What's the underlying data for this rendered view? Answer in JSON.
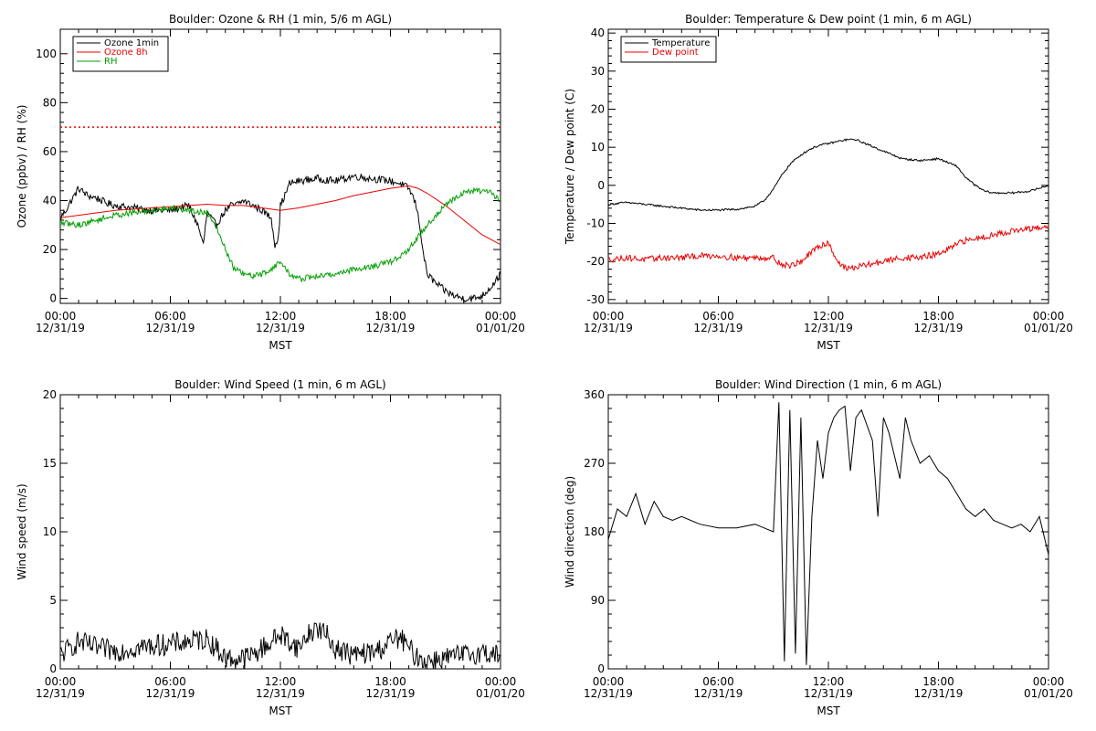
{
  "figure": {
    "background": "#ffffff",
    "colors": {
      "black": "#000000",
      "red": "#ee0000",
      "green": "#00a000"
    }
  },
  "chart_data": [
    {
      "id": "ozone_rh",
      "type": "line",
      "title": "Boulder: Ozone & RH (1 min, 5/6 m AGL)",
      "ylabel": "Ozone (ppbv) / RH (%)",
      "xlabel": "MST",
      "xlim": [
        0,
        24
      ],
      "ylim": [
        -2,
        110
      ],
      "xticks": [
        0,
        6,
        12,
        18,
        24
      ],
      "xtick_labels": [
        [
          "00:00",
          "12/31/19"
        ],
        [
          "06:00",
          "12/31/19"
        ],
        [
          "12:00",
          "12/31/19"
        ],
        [
          "18:00",
          "12/31/19"
        ],
        [
          "00:00",
          "01/01/20"
        ]
      ],
      "yticks": [
        0,
        20,
        40,
        60,
        80,
        100
      ],
      "ytick_labels": [
        "0",
        "20",
        "40",
        "60",
        "80",
        "100"
      ],
      "legend": {
        "position": "top-left",
        "entries": [
          "Ozone 1min",
          "Ozone 8h",
          "RH"
        ]
      },
      "hline": {
        "y": 70,
        "style": "dotted",
        "color": "#ee0000"
      },
      "series": [
        {
          "name": "Ozone 1min",
          "color": "#000000",
          "noise": 1.5,
          "x": [
            0,
            0.3,
            0.6,
            1.0,
            1.5,
            2.0,
            2.5,
            3.0,
            4.0,
            5.0,
            6.0,
            7.0,
            7.5,
            7.8,
            8.0,
            8.5,
            9.0,
            9.3,
            9.5,
            10.0,
            10.5,
            11.0,
            11.5,
            11.7,
            11.9,
            12.0,
            12.3,
            12.5,
            13.0,
            14.0,
            15.0,
            16.0,
            17.0,
            18.0,
            18.5,
            19.0,
            19.2,
            19.4,
            19.6,
            19.8,
            20.0,
            20.5,
            21.0,
            21.5,
            22.0,
            22.5,
            23.0,
            23.5,
            24.0
          ],
          "y": [
            33,
            36,
            40,
            45,
            42,
            41,
            39,
            38,
            37,
            36,
            36,
            38,
            30,
            22,
            35,
            30,
            36,
            38,
            38,
            40,
            38,
            36,
            33,
            22,
            25,
            38,
            43,
            47,
            48,
            49,
            48,
            50,
            49,
            48,
            47,
            45,
            42,
            38,
            30,
            18,
            10,
            6,
            3,
            1,
            0,
            0,
            1,
            5,
            10
          ]
        },
        {
          "name": "Ozone 8h",
          "color": "#ee0000",
          "noise": 0,
          "x": [
            0,
            1,
            2,
            3,
            4,
            5,
            6,
            7,
            8,
            9,
            10,
            11,
            12,
            13,
            14,
            15,
            16,
            17,
            18,
            19,
            19.5,
            20,
            21,
            22,
            23,
            24
          ],
          "y": [
            33,
            34,
            35,
            36,
            36.5,
            37,
            37.5,
            38,
            38.5,
            38,
            38,
            37,
            36,
            37,
            38.5,
            40,
            42,
            43.5,
            45,
            46,
            45,
            43,
            38,
            32,
            26,
            22
          ]
        },
        {
          "name": "RH",
          "color": "#00a000",
          "noise": 1.2,
          "x": [
            0,
            1,
            2,
            3,
            4,
            5,
            6,
            7,
            8,
            8.5,
            9,
            9.5,
            10,
            10.5,
            11,
            11.5,
            12,
            12.5,
            13,
            14,
            15,
            16,
            17,
            18,
            18.5,
            19,
            19.5,
            20,
            20.5,
            21,
            21.5,
            22,
            22.5,
            23,
            23.5,
            24
          ],
          "y": [
            31,
            30,
            32,
            34,
            35,
            36,
            37,
            36,
            35,
            30,
            20,
            12,
            10,
            9,
            10,
            12,
            15,
            10,
            8,
            9,
            10,
            12,
            13,
            15,
            17,
            20,
            25,
            30,
            34,
            38,
            41,
            43,
            44,
            44,
            43,
            40
          ]
        }
      ]
    },
    {
      "id": "temp_dew",
      "type": "line",
      "title": "Boulder: Temperature & Dew point (1 min, 6 m AGL)",
      "ylabel": "Temperature / Dew point (C)",
      "xlabel": "MST",
      "xlim": [
        0,
        24
      ],
      "ylim": [
        -31,
        41
      ],
      "xticks": [
        0,
        6,
        12,
        18,
        24
      ],
      "xtick_labels": [
        [
          "00:00",
          "12/31/19"
        ],
        [
          "06:00",
          "12/31/19"
        ],
        [
          "12:00",
          "12/31/19"
        ],
        [
          "18:00",
          "12/31/19"
        ],
        [
          "00:00",
          "01/01/20"
        ]
      ],
      "yticks": [
        -30,
        -20,
        -10,
        0,
        10,
        20,
        30,
        40
      ],
      "ytick_labels": [
        "-30",
        "-20",
        "-10",
        "0",
        "10",
        "20",
        "30",
        "40"
      ],
      "legend": {
        "position": "top-left",
        "entries": [
          "Temperature",
          "Dew point"
        ]
      },
      "series": [
        {
          "name": "Temperature",
          "color": "#000000",
          "noise": 0.25,
          "x": [
            0,
            1,
            2,
            3,
            4,
            5,
            6,
            7,
            8,
            8.5,
            9,
            9.5,
            10,
            10.5,
            11,
            11.5,
            12,
            12.5,
            13,
            13.5,
            14,
            15,
            16,
            17,
            18,
            19,
            19.5,
            20,
            20.5,
            21,
            22,
            23,
            24
          ],
          "y": [
            -5,
            -4.5,
            -5,
            -5.5,
            -6,
            -6.5,
            -6.5,
            -6.3,
            -5.5,
            -4,
            -1,
            3,
            6,
            8,
            9.5,
            10.5,
            11,
            11.5,
            12,
            12,
            11,
            9,
            7,
            6.5,
            7,
            5,
            2,
            0,
            -1.5,
            -2,
            -2,
            -1.5,
            0
          ]
        },
        {
          "name": "Dew point",
          "color": "#ee0000",
          "noise": 0.8,
          "x": [
            0,
            1,
            2,
            3,
            4,
            5,
            6,
            7,
            8,
            9,
            9.5,
            10,
            10.5,
            11,
            11.5,
            12,
            12.5,
            13,
            14,
            15,
            16,
            17,
            18,
            18.5,
            19,
            19.5,
            20,
            21,
            22,
            23,
            24
          ],
          "y": [
            -19.5,
            -19,
            -19.5,
            -19,
            -19,
            -18.5,
            -18.5,
            -19,
            -19,
            -19,
            -21,
            -21,
            -20,
            -18,
            -16,
            -15,
            -20,
            -22,
            -21,
            -20,
            -19,
            -19,
            -18,
            -17,
            -15.5,
            -14.5,
            -14,
            -13,
            -12,
            -11.5,
            -11
          ]
        }
      ]
    },
    {
      "id": "wind_speed",
      "type": "line",
      "title": "Boulder: Wind Speed (1 min, 6 m AGL)",
      "ylabel": "Wind speed (m/s)",
      "xlabel": "MST",
      "xlim": [
        0,
        24
      ],
      "ylim": [
        0,
        20
      ],
      "xticks": [
        0,
        6,
        12,
        18,
        24
      ],
      "xtick_labels": [
        [
          "00:00",
          "12/31/19"
        ],
        [
          "06:00",
          "12/31/19"
        ],
        [
          "12:00",
          "12/31/19"
        ],
        [
          "18:00",
          "12/31/19"
        ],
        [
          "00:00",
          "01/01/20"
        ]
      ],
      "yticks": [
        0,
        5,
        10,
        15,
        20
      ],
      "ytick_labels": [
        "0",
        "5",
        "10",
        "15",
        "20"
      ],
      "series": [
        {
          "name": "Wind speed",
          "color": "#000000",
          "noise": 0.8,
          "x": [
            0,
            0.5,
            1,
            2,
            3,
            4,
            5,
            6,
            7,
            8,
            8.5,
            9,
            9.5,
            10,
            10.5,
            11,
            11.5,
            12,
            12.5,
            13,
            13.5,
            14,
            14.5,
            15,
            16,
            17,
            17.5,
            18,
            18.5,
            19,
            19.5,
            20,
            21,
            22,
            23,
            24
          ],
          "y": [
            1,
            1.5,
            2,
            1.5,
            1.3,
            1.5,
            1.7,
            1.8,
            2.0,
            2.2,
            1.5,
            0.8,
            0.7,
            0.8,
            1.0,
            1.5,
            2,
            2.5,
            2,
            1.5,
            2.5,
            3,
            2.5,
            1.5,
            1,
            1.2,
            1.5,
            2,
            2.3,
            1.5,
            0.8,
            0.6,
            0.8,
            1.0,
            1.2,
            1.0
          ]
        }
      ]
    },
    {
      "id": "wind_dir",
      "type": "line",
      "title": "Boulder: Wind Direction (1 min, 6 m AGL)",
      "ylabel": "Wind direction (deg)",
      "xlabel": "MST",
      "xlim": [
        0,
        24
      ],
      "ylim": [
        0,
        360
      ],
      "xticks": [
        0,
        6,
        12,
        18,
        24
      ],
      "xtick_labels": [
        [
          "00:00",
          "12/31/19"
        ],
        [
          "06:00",
          "12/31/19"
        ],
        [
          "12:00",
          "12/31/19"
        ],
        [
          "18:00",
          "12/31/19"
        ],
        [
          "00:00",
          "01/01/20"
        ]
      ],
      "yticks": [
        0,
        90,
        180,
        270,
        360
      ],
      "ytick_labels": [
        "0",
        "90",
        "180",
        "270",
        "360"
      ],
      "series": [
        {
          "name": "Wind direction",
          "color": "#000000",
          "noise": 0,
          "x": [
            0,
            0.5,
            1,
            1.5,
            2,
            2.5,
            3,
            3.5,
            4,
            5,
            6,
            7,
            8,
            8.5,
            9,
            9.3,
            9.6,
            9.9,
            10.2,
            10.5,
            10.8,
            11.1,
            11.4,
            11.7,
            12,
            12.3,
            12.6,
            12.9,
            13.2,
            13.5,
            13.8,
            14.1,
            14.4,
            14.7,
            15,
            15.3,
            15.6,
            15.9,
            16.2,
            16.5,
            17,
            17.5,
            18,
            18.5,
            19,
            19.5,
            20,
            20.5,
            21,
            21.5,
            22,
            22.5,
            23,
            23.5,
            24
          ],
          "y": [
            170,
            210,
            200,
            230,
            190,
            220,
            200,
            195,
            200,
            190,
            185,
            185,
            190,
            185,
            180,
            350,
            10,
            340,
            20,
            330,
            5,
            200,
            300,
            250,
            310,
            330,
            340,
            345,
            260,
            330,
            340,
            320,
            300,
            200,
            330,
            310,
            280,
            250,
            330,
            300,
            270,
            280,
            260,
            250,
            230,
            210,
            200,
            210,
            195,
            190,
            185,
            190,
            180,
            200,
            150
          ]
        }
      ]
    }
  ]
}
